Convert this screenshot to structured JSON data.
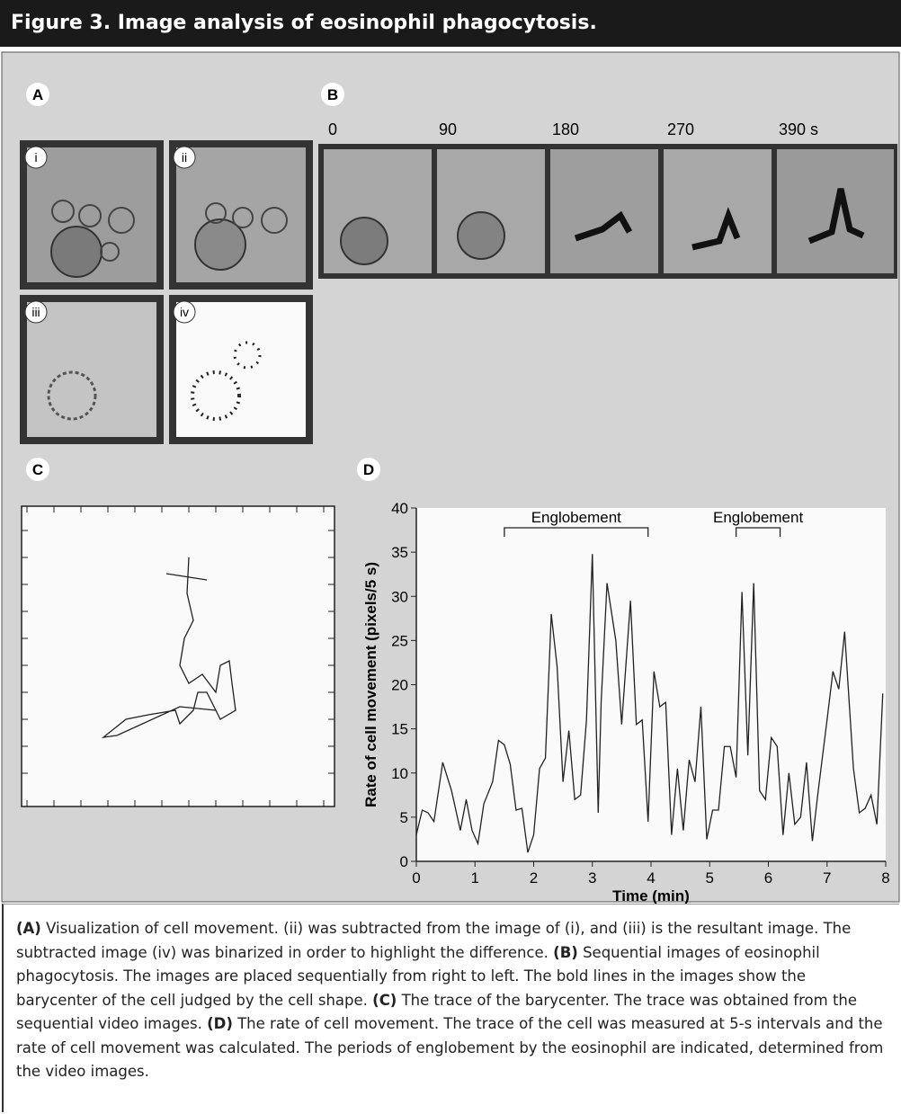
{
  "header": {
    "title": "Figure 3. Image analysis of eosinophil phagocytosis."
  },
  "panels": {
    "labels": [
      "A",
      "B",
      "C",
      "D"
    ],
    "sub_labels": [
      "i",
      "ii",
      "iii",
      "iv"
    ],
    "times": [
      "0",
      "90",
      "180",
      "270",
      "390 s"
    ]
  },
  "chart_data": {
    "type": "line",
    "xlabel": "Time (min)",
    "ylabel": "Rate of cell movement (pixels/5 s)",
    "xlim": [
      0,
      8
    ],
    "ylim": [
      0,
      40
    ],
    "xticks": [
      0,
      1,
      2,
      3,
      4,
      5,
      6,
      7,
      8
    ],
    "yticks": [
      0,
      5,
      10,
      15,
      20,
      25,
      30,
      35,
      40
    ],
    "color": "#222222",
    "annotations": [
      {
        "text": "Englobement",
        "x": [
          1.5,
          3.95
        ]
      },
      {
        "text": "Englobement",
        "x": [
          5.45,
          6.2
        ]
      }
    ],
    "x": [
      0,
      0.1,
      0.2,
      0.3,
      0.45,
      0.6,
      0.75,
      0.85,
      0.95,
      1.05,
      1.15,
      1.3,
      1.4,
      1.5,
      1.6,
      1.7,
      1.8,
      1.9,
      2.0,
      2.1,
      2.2,
      2.3,
      2.4,
      2.5,
      2.6,
      2.7,
      2.8,
      2.9,
      3.0,
      3.1,
      3.15,
      3.25,
      3.4,
      3.5,
      3.65,
      3.75,
      3.85,
      3.95,
      4.05,
      4.15,
      4.25,
      4.35,
      4.45,
      4.55,
      4.65,
      4.75,
      4.85,
      4.95,
      5.05,
      5.15,
      5.25,
      5.35,
      5.45,
      5.55,
      5.65,
      5.75,
      5.85,
      5.95,
      6.05,
      6.15,
      6.25,
      6.35,
      6.45,
      6.55,
      6.65,
      6.75,
      6.85,
      7.0,
      7.1,
      7.2,
      7.3,
      7.45,
      7.55,
      7.65,
      7.75,
      7.85,
      7.95
    ],
    "values": [
      3,
      5.8,
      5.5,
      4.5,
      11.2,
      8,
      3.5,
      7,
      3.5,
      2,
      6.5,
      9,
      13.7,
      13.2,
      11,
      5.8,
      6,
      1,
      3,
      10.5,
      11.7,
      28,
      22,
      9,
      14.8,
      7,
      7.5,
      16,
      34.8,
      5.5,
      18,
      31.5,
      25,
      15.5,
      29.5,
      15.5,
      16,
      4.5,
      21.5,
      17.5,
      18,
      3,
      10.5,
      3.5,
      11.5,
      9,
      17.5,
      2.5,
      5.8,
      5.8,
      13,
      13,
      9.5,
      30.5,
      12,
      31.5,
      8,
      7,
      14,
      13,
      3,
      10,
      4.2,
      5,
      11.2,
      2.3,
      8,
      16,
      21.5,
      19.5,
      26,
      10.5,
      5.5,
      6,
      7.5,
      4.2,
      19
    ]
  },
  "caption": [
    {
      "label": "(A)",
      "text": " Visualization of cell movement. (ii) was subtracted from the image of (i), and (iii) is the resultant image. The subtracted image (iv) was binarized in order to highlight the difference. "
    },
    {
      "label": "(B)",
      "text": " Sequential images of eosinophil phagocytosis. The images are placed sequentially from right to left. The bold lines in the images show the barycenter of the cell judged by the cell shape. "
    },
    {
      "label": "(C)",
      "text": " The trace of the barycenter. The trace was obtained from the sequential video images. "
    },
    {
      "label": "(D)",
      "text": " The rate of cell movement. The trace of the cell was measured at 5-s intervals and the rate of cell movement was calculated. The periods of englobement by the eosinophil are indicated, determined from the video images."
    }
  ]
}
